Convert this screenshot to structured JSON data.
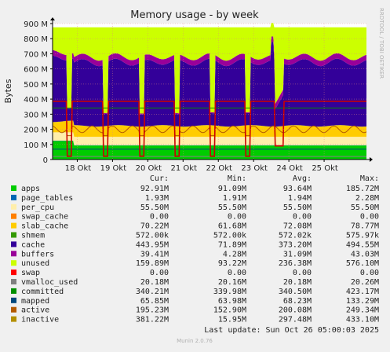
{
  "chart_data": {
    "type": "area",
    "title": "Memory usage - by week",
    "ylabel": "Bytes",
    "side_label": "RRDTOOL / TOBI OETIKER",
    "ylim": [
      0,
      900000000
    ],
    "yticks": [
      {
        "value": 0,
        "label": "0"
      },
      {
        "value": 100000000,
        "label": "100 M"
      },
      {
        "value": 200000000,
        "label": "200 M"
      },
      {
        "value": 300000000,
        "label": "300 M"
      },
      {
        "value": 400000000,
        "label": "400 M"
      },
      {
        "value": 500000000,
        "label": "500 M"
      },
      {
        "value": 600000000,
        "label": "600 M"
      },
      {
        "value": 700000000,
        "label": "700 M"
      },
      {
        "value": 800000000,
        "label": "800 M"
      },
      {
        "value": 900000000,
        "label": "900 M"
      }
    ],
    "x_range_days": [
      17.3,
      26.2
    ],
    "xticks": [
      {
        "value": 18,
        "label": "18 Okt"
      },
      {
        "value": 19,
        "label": "19 Okt"
      },
      {
        "value": 20,
        "label": "20 Okt"
      },
      {
        "value": 21,
        "label": "21 Okt"
      },
      {
        "value": 22,
        "label": "22 Okt"
      },
      {
        "value": 23,
        "label": "23 Okt"
      },
      {
        "value": 24,
        "label": "24 Okt"
      },
      {
        "value": 25,
        "label": "25 Okt"
      }
    ],
    "grid": true,
    "legend_columns": [
      "Cur:",
      "Min:",
      "Avg:",
      "Max:"
    ],
    "series": [
      {
        "name": "apps",
        "color": "#00cc00",
        "cur": "92.91M",
        "min": "91.09M",
        "avg": "93.64M",
        "max": "185.72M"
      },
      {
        "name": "page_tables",
        "color": "#0066b3",
        "cur": "1.93M",
        "min": "1.91M",
        "avg": "1.94M",
        "max": "2.28M"
      },
      {
        "name": "per_cpu",
        "color": "#ffeeaa",
        "cur": "55.50M",
        "min": "55.50M",
        "avg": "55.50M",
        "max": "55.50M"
      },
      {
        "name": "swap_cache",
        "color": "#ff8000",
        "cur": "0.00",
        "min": "0.00",
        "avg": "0.00",
        "max": "0.00"
      },
      {
        "name": "slab_cache",
        "color": "#ffcc00",
        "cur": "70.22M",
        "min": "61.68M",
        "avg": "72.08M",
        "max": "78.77M"
      },
      {
        "name": "shmem",
        "color": "#339900",
        "cur": "572.00k",
        "min": "572.00k",
        "avg": "572.02k",
        "max": "575.97k"
      },
      {
        "name": "cache",
        "color": "#330099",
        "cur": "443.95M",
        "min": "71.89M",
        "avg": "373.20M",
        "max": "494.55M"
      },
      {
        "name": "buffers",
        "color": "#990099",
        "cur": "39.41M",
        "min": "4.28M",
        "avg": "31.09M",
        "max": "43.03M"
      },
      {
        "name": "unused",
        "color": "#ccff00",
        "cur": "159.89M",
        "min": "93.22M",
        "avg": "236.38M",
        "max": "576.10M"
      },
      {
        "name": "swap",
        "color": "#ff0000",
        "cur": "0.00",
        "min": "0.00",
        "avg": "0.00",
        "max": "0.00"
      },
      {
        "name": "vmalloc_used",
        "color": "#808080",
        "cur": "20.18M",
        "min": "20.16M",
        "avg": "20.18M",
        "max": "20.26M"
      },
      {
        "name": "committed",
        "color": "#008f00",
        "cur": "340.21M",
        "min": "339.98M",
        "avg": "340.50M",
        "max": "423.17M"
      },
      {
        "name": "mapped",
        "color": "#00487d",
        "cur": "65.85M",
        "min": "63.98M",
        "avg": "68.23M",
        "max": "133.29M"
      },
      {
        "name": "active",
        "color": "#b35a00",
        "cur": "195.23M",
        "min": "152.90M",
        "avg": "200.08M",
        "max": "249.34M"
      },
      {
        "name": "inactive",
        "color": "#b38f00",
        "cur": "381.22M",
        "min": "15.95M",
        "avg": "297.48M",
        "max": "433.10M"
      }
    ],
    "inactive_line_color": "#cc0000",
    "footer": "Last update:  Sun Oct 26 05:00:03 2025",
    "version": "Munin 2.0.76"
  }
}
